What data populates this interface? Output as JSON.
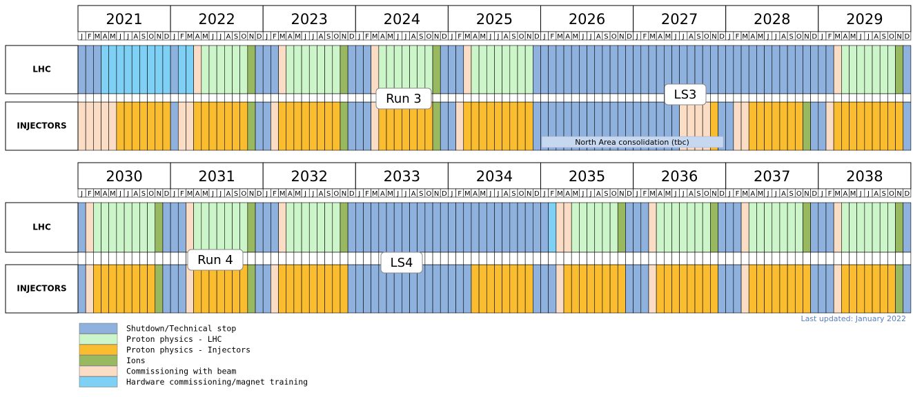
{
  "months": [
    "J",
    "F",
    "M",
    "A",
    "M",
    "J",
    "J",
    "A",
    "S",
    "O",
    "N",
    "D"
  ],
  "rows": [
    "LHC",
    "INJECTORS"
  ],
  "blocks": [
    {
      "years": [
        "2021",
        "2022",
        "2023",
        "2024",
        "2025",
        "2026",
        "2027",
        "2028",
        "2029"
      ]
    },
    {
      "years": [
        "2030",
        "2031",
        "2032",
        "2033",
        "2034",
        "2035",
        "2036",
        "2037",
        "2038"
      ]
    }
  ],
  "labels": {
    "run3": "Run 3",
    "ls3": "LS3",
    "north_area": "North Area consolidation (tbc)",
    "run4": "Run 4",
    "ls4": "LS4"
  },
  "last_updated": "Last updated: January 2022",
  "legend": [
    {
      "label": "Shutdown/Technical stop",
      "color": "#8eb1dd"
    },
    {
      "label": "Proton physics - LHC",
      "color": "#ccf5c9"
    },
    {
      "label": "Proton physics - Injectors",
      "color": "#fbbd30"
    },
    {
      "label": "Ions",
      "color": "#99b960"
    },
    {
      "label": "Commissioning with beam",
      "color": "#fbdcc4"
    },
    {
      "label": "Hardware commissioning/magnet training",
      "color": "#7fd0f5"
    }
  ]
}
